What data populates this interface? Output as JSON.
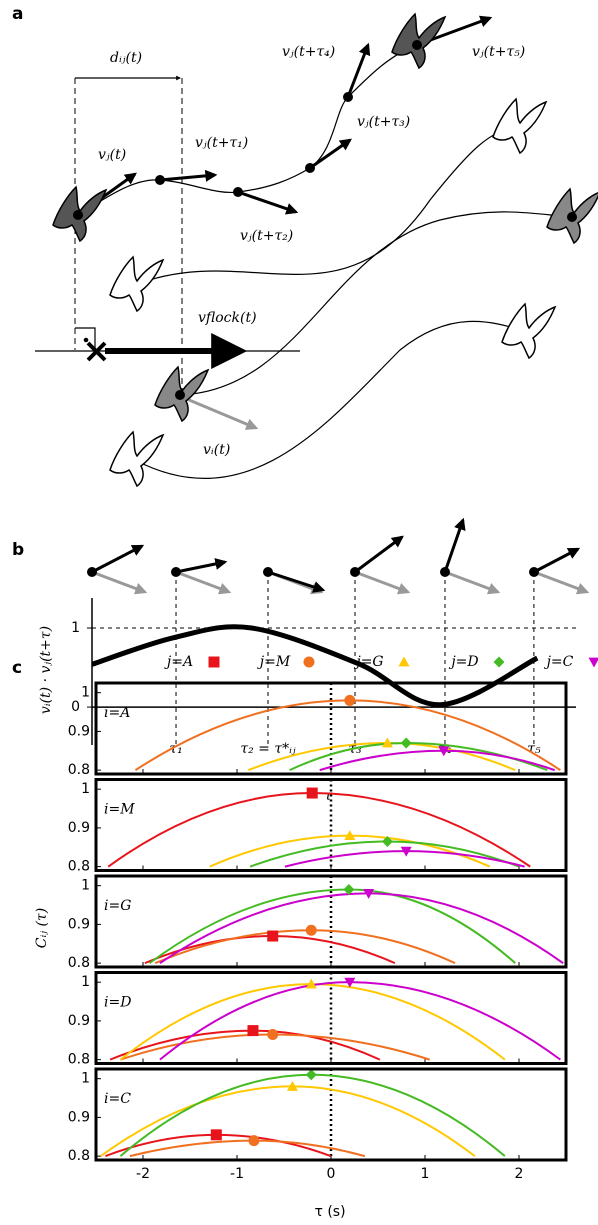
{
  "panel_a": {
    "label": "a",
    "labels": [
      "dᵢⱼ(t)",
      "vⱼ(t)",
      "vⱼ(t+τ₁)",
      "vⱼ(t+τ₂)",
      "vⱼ(t+τ₃)",
      "vⱼ(t+τ₄)",
      "vⱼ(t+τ₅)",
      "vflock(t)",
      "vᵢ(t)"
    ]
  },
  "panel_b": {
    "label": "b",
    "type": "line",
    "x": [
      0,
      0.17,
      0.33,
      0.55,
      0.72,
      0.92
    ],
    "values": [
      0.54,
      0.88,
      1.0,
      0.55,
      0.03,
      0.62
    ],
    "xlim": [
      0,
      1
    ],
    "ylim": [
      -0.48,
      1.38
    ],
    "xticks": [
      {
        "value": 0.1736,
        "label": "τ₁"
      },
      {
        "value": 0.3636,
        "label": "τ₂ = τ*ᵢⱼ"
      },
      {
        "value": 0.5434,
        "label": "τ₃"
      },
      {
        "value": 0.7293,
        "label": "τ₄"
      },
      {
        "value": 0.913,
        "label": "τ₅"
      }
    ],
    "yticks": [
      0,
      1
    ],
    "hline": 1,
    "xlabel": "τ",
    "ylabel": "vᵢ(t) · vⱼ(t+τ)"
  },
  "panel_c": {
    "label": "c",
    "type": "line",
    "xlim": [
      -2.5,
      2.5
    ],
    "ylim": [
      0.79,
      1.025
    ],
    "xticks": [
      -2,
      -1,
      0,
      1,
      2
    ],
    "yticks": [
      0.8,
      0.9,
      1
    ],
    "vline": 0,
    "xlabel": "τ (s)",
    "ylabel": "Cᵢⱼ (τ)",
    "legend": [
      {
        "name": "j=A",
        "color": "#e8141c",
        "marker": "square"
      },
      {
        "name": "j=M",
        "color": "#f07020",
        "marker": "circle"
      },
      {
        "name": "j=G",
        "color": "#ffc800",
        "marker": "triangle-up"
      },
      {
        "name": "j=D",
        "color": "#44bb22",
        "marker": "diamond"
      },
      {
        "name": "j=C",
        "color": "#cc00cc",
        "marker": "triangle-down"
      }
    ],
    "subplots": [
      {
        "title": "i=A",
        "series": [
          {
            "name": "j=M",
            "x": [
              -2.08,
              0.2,
              2.44
            ],
            "values": [
              0.8,
              0.98,
              0.8
            ]
          },
          {
            "name": "j=G",
            "x": [
              -0.88,
              0.6,
              1.96
            ],
            "values": [
              0.8,
              0.87,
              0.8
            ]
          },
          {
            "name": "j=D",
            "x": [
              -0.44,
              0.8,
              2.3
            ],
            "values": [
              0.8,
              0.87,
              0.8
            ]
          },
          {
            "name": "j=C",
            "x": [
              -0.12,
              1.2,
              2.38
            ],
            "values": [
              0.8,
              0.85,
              0.8
            ]
          }
        ]
      },
      {
        "title": "i=M",
        "series": [
          {
            "name": "j=A",
            "x": [
              -2.37,
              -0.2,
              2.12
            ],
            "values": [
              0.8,
              0.99,
              0.8
            ]
          },
          {
            "name": "j=G",
            "x": [
              -1.29,
              0.2,
              1.69
            ],
            "values": [
              0.8,
              0.88,
              0.8
            ]
          },
          {
            "name": "j=D",
            "x": [
              -0.86,
              0.6,
              2.0
            ],
            "values": [
              0.8,
              0.865,
              0.8
            ]
          },
          {
            "name": "j=C",
            "x": [
              -0.49,
              0.8,
              2.06
            ],
            "values": [
              0.8,
              0.84,
              0.8
            ]
          }
        ]
      },
      {
        "title": "i=G",
        "series": [
          {
            "name": "j=A",
            "x": [
              -1.98,
              -0.62,
              0.68
            ],
            "values": [
              0.8,
              0.87,
              0.8
            ]
          },
          {
            "name": "j=M",
            "x": [
              -1.87,
              -0.21,
              1.32
            ],
            "values": [
              0.8,
              0.885,
              0.8
            ]
          },
          {
            "name": "j=D",
            "x": [
              -1.93,
              0.19,
              1.96
            ],
            "values": [
              0.8,
              0.99,
              0.8
            ]
          },
          {
            "name": "j=C",
            "x": [
              -1.82,
              0.4,
              2.47
            ],
            "values": [
              0.8,
              0.98,
              0.8
            ]
          }
        ]
      },
      {
        "title": "i=D",
        "series": [
          {
            "name": "j=A",
            "x": [
              -2.35,
              -0.83,
              0.52
            ],
            "values": [
              0.8,
              0.875,
              0.8
            ]
          },
          {
            "name": "j=M",
            "x": [
              -2.24,
              -0.62,
              1.05
            ],
            "values": [
              0.8,
              0.865,
              0.8
            ]
          },
          {
            "name": "j=G",
            "x": [
              -2.24,
              -0.21,
              1.85
            ],
            "values": [
              0.8,
              0.995,
              0.8
            ]
          },
          {
            "name": "j=C",
            "x": [
              -1.82,
              0.2,
              2.44
            ],
            "values": [
              0.8,
              1.0,
              0.8
            ]
          }
        ]
      },
      {
        "title": "i=C",
        "series": [
          {
            "name": "j=A",
            "x": [
              -2.4,
              -1.22,
              0.0
            ],
            "values": [
              0.8,
              0.855,
              0.8
            ]
          },
          {
            "name": "j=M",
            "x": [
              -2.14,
              -0.82,
              0.36
            ],
            "values": [
              0.8,
              0.84,
              0.8
            ]
          },
          {
            "name": "j=G",
            "x": [
              -2.45,
              -0.41,
              1.53
            ],
            "values": [
              0.8,
              0.98,
              0.8
            ]
          },
          {
            "name": "j=D",
            "x": [
              -2.24,
              -0.21,
              1.85
            ],
            "values": [
              0.8,
              1.01,
              0.8
            ]
          }
        ]
      }
    ]
  }
}
